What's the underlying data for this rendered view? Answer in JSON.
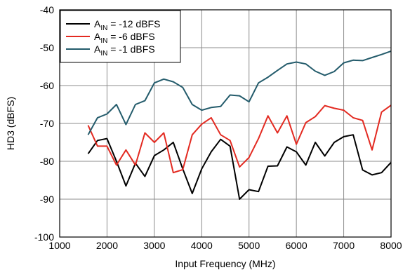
{
  "chart_data": {
    "type": "line",
    "xlabel": "Input Frequency (MHz)",
    "ylabel": "HD3 (dBFS)",
    "xlim": [
      1000,
      8000
    ],
    "ylim": [
      -100,
      -40
    ],
    "x_ticks": [
      "1000",
      "2000",
      "3000",
      "4000",
      "5000",
      "6000",
      "7000",
      "8000"
    ],
    "y_ticks": [
      "-100",
      "-90",
      "-80",
      "-70",
      "-60",
      "-50",
      "-40"
    ],
    "grid": true,
    "legend_position": "top-left",
    "series": [
      {
        "name_main": "A",
        "name_sub": "IN",
        "name_rest": " = -12 dBFS",
        "color": "#000000",
        "x": [
          1600,
          1800,
          2000,
          2200,
          2400,
          2600,
          2800,
          3000,
          3200,
          3400,
          3600,
          3800,
          4000,
          4200,
          4400,
          4600,
          4800,
          5000,
          5200,
          5400,
          5600,
          5800,
          6000,
          6200,
          6400,
          6600,
          6800,
          7000,
          7200,
          7400,
          7600,
          7800,
          8000
        ],
        "y": [
          -78,
          -74.5,
          -74,
          -80,
          -86.5,
          -80.5,
          -84,
          -78.5,
          -77,
          -75,
          -82,
          -88.5,
          -82,
          -77.5,
          -74.2,
          -76,
          -90,
          -87.5,
          -88,
          -81.3,
          -81.2,
          -76.2,
          -77.5,
          -81,
          -75,
          -78.6,
          -75,
          -73.5,
          -73,
          -82.3,
          -83.6,
          -83,
          -80.3
        ]
      },
      {
        "name_main": "A",
        "name_sub": "IN",
        "name_rest": " = -6 dBFS",
        "color": "#e32a21",
        "x": [
          1600,
          1800,
          2000,
          2200,
          2400,
          2600,
          2800,
          3000,
          3200,
          3400,
          3600,
          3800,
          4000,
          4200,
          4400,
          4600,
          4800,
          5000,
          5200,
          5400,
          5600,
          5800,
          6000,
          6200,
          6400,
          6600,
          6800,
          7000,
          7200,
          7400,
          7600,
          7800,
          8000
        ],
        "y": [
          -70.5,
          -76,
          -76,
          -81,
          -77,
          -81,
          -72.5,
          -75,
          -72.5,
          -83,
          -82.2,
          -73,
          -70.2,
          -68.5,
          -73,
          -74.5,
          -81.5,
          -79,
          -74,
          -68,
          -72.5,
          -68,
          -75.5,
          -69.8,
          -68.2,
          -65.3,
          -66,
          -66.5,
          -68.5,
          -69.2,
          -77,
          -67,
          -65.2
        ]
      },
      {
        "name_main": "A",
        "name_sub": "IN",
        "name_rest": " = -1 dBFS",
        "color": "#235b6b",
        "x": [
          1600,
          1800,
          2000,
          2200,
          2400,
          2600,
          2800,
          3000,
          3200,
          3400,
          3600,
          3800,
          4000,
          4200,
          4400,
          4600,
          4800,
          5000,
          5200,
          5400,
          5600,
          5800,
          6000,
          6200,
          6400,
          6600,
          6800,
          7000,
          7200,
          7400,
          7600,
          7800,
          8000
        ],
        "y": [
          -73,
          -68.5,
          -67.5,
          -65,
          -70.3,
          -65,
          -64,
          -59.3,
          -58.3,
          -59,
          -60.5,
          -65,
          -66.5,
          -65.8,
          -65.5,
          -62.5,
          -62.7,
          -64.3,
          -59.3,
          -57.8,
          -56,
          -54.3,
          -53.8,
          -54.3,
          -56.2,
          -57.3,
          -56.3,
          -54,
          -53.3,
          -53.4,
          -52.6,
          -51.8,
          -50.9
        ]
      }
    ]
  }
}
